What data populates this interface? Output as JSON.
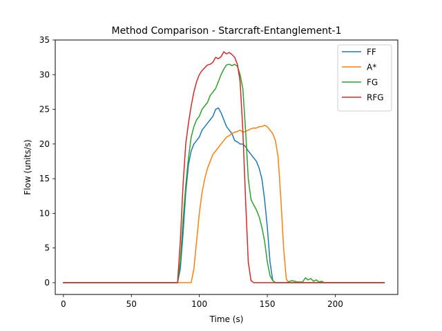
{
  "chart_data": {
    "type": "line",
    "title": "Method Comparison - Starcraft-Entanglement-1",
    "xlabel": "Time (s)",
    "ylabel": "Flow (units/s)",
    "xlim": [
      -6,
      246
    ],
    "ylim": [
      -1.7,
      35
    ],
    "xticks": [
      0,
      50,
      100,
      150,
      200
    ],
    "yticks": [
      0,
      5,
      10,
      15,
      20,
      25,
      30,
      35
    ],
    "grid": false,
    "legend_position": "top-right",
    "series": [
      {
        "name": "FF",
        "color": "#1f77b4",
        "points": [
          [
            0,
            0
          ],
          [
            84,
            0
          ],
          [
            86,
            2
          ],
          [
            88,
            7
          ],
          [
            90,
            13
          ],
          [
            92,
            17
          ],
          [
            94,
            19
          ],
          [
            96,
            20
          ],
          [
            98,
            20.5
          ],
          [
            100,
            21
          ],
          [
            102,
            22
          ],
          [
            104,
            22.5
          ],
          [
            106,
            23
          ],
          [
            108,
            23.5
          ],
          [
            110,
            24
          ],
          [
            112,
            25
          ],
          [
            114,
            25.2
          ],
          [
            116,
            24.5
          ],
          [
            118,
            23.5
          ],
          [
            120,
            22.5
          ],
          [
            122,
            22
          ],
          [
            124,
            21.5
          ],
          [
            126,
            20.5
          ],
          [
            128,
            20.3
          ],
          [
            130,
            20
          ],
          [
            132,
            20
          ],
          [
            134,
            19.6
          ],
          [
            136,
            19
          ],
          [
            138,
            18.5
          ],
          [
            140,
            18
          ],
          [
            142,
            17.5
          ],
          [
            144,
            16.5
          ],
          [
            146,
            15
          ],
          [
            148,
            12
          ],
          [
            150,
            8
          ],
          [
            152,
            3
          ],
          [
            154,
            0.3
          ],
          [
            156,
            0
          ],
          [
            236,
            0
          ]
        ]
      },
      {
        "name": "A*",
        "color": "#ff7f0e",
        "points": [
          [
            0,
            0
          ],
          [
            94,
            0
          ],
          [
            96,
            2
          ],
          [
            98,
            6
          ],
          [
            100,
            10
          ],
          [
            102,
            13
          ],
          [
            104,
            15
          ],
          [
            106,
            16.5
          ],
          [
            108,
            17.5
          ],
          [
            110,
            18.5
          ],
          [
            112,
            19
          ],
          [
            114,
            19.5
          ],
          [
            116,
            20
          ],
          [
            118,
            20.5
          ],
          [
            120,
            21
          ],
          [
            122,
            21.2
          ],
          [
            124,
            21.5
          ],
          [
            126,
            21.7
          ],
          [
            128,
            21.8
          ],
          [
            130,
            22
          ],
          [
            132,
            21.7
          ],
          [
            134,
            21.8
          ],
          [
            136,
            22
          ],
          [
            138,
            22.2
          ],
          [
            140,
            22.3
          ],
          [
            142,
            22.3
          ],
          [
            144,
            22.5
          ],
          [
            146,
            22.5
          ],
          [
            148,
            22.7
          ],
          [
            150,
            22.5
          ],
          [
            152,
            22
          ],
          [
            154,
            21.5
          ],
          [
            156,
            20.5
          ],
          [
            158,
            18
          ],
          [
            160,
            12
          ],
          [
            162,
            5
          ],
          [
            164,
            0.5
          ],
          [
            166,
            0
          ],
          [
            236,
            0
          ]
        ]
      },
      {
        "name": "FG",
        "color": "#2ca02c",
        "points": [
          [
            0,
            0
          ],
          [
            84,
            0
          ],
          [
            86,
            3
          ],
          [
            88,
            9
          ],
          [
            90,
            14
          ],
          [
            92,
            18
          ],
          [
            94,
            21
          ],
          [
            96,
            22.5
          ],
          [
            98,
            23.5
          ],
          [
            100,
            24
          ],
          [
            102,
            25
          ],
          [
            104,
            25.5
          ],
          [
            106,
            26
          ],
          [
            108,
            27
          ],
          [
            110,
            27.5
          ],
          [
            112,
            28
          ],
          [
            114,
            29
          ],
          [
            116,
            30
          ],
          [
            118,
            30.8
          ],
          [
            120,
            31.4
          ],
          [
            122,
            31.5
          ],
          [
            124,
            31.3
          ],
          [
            126,
            31.5
          ],
          [
            128,
            31.2
          ],
          [
            130,
            30
          ],
          [
            132,
            28
          ],
          [
            134,
            22
          ],
          [
            136,
            15
          ],
          [
            138,
            12
          ],
          [
            140,
            11.2
          ],
          [
            142,
            10.5
          ],
          [
            144,
            9.5
          ],
          [
            146,
            8
          ],
          [
            148,
            6
          ],
          [
            150,
            3
          ],
          [
            152,
            1
          ],
          [
            154,
            0.3
          ],
          [
            156,
            0
          ],
          [
            164,
            0
          ],
          [
            168,
            0.3
          ],
          [
            172,
            0.1
          ],
          [
            176,
            0.1
          ],
          [
            178,
            0.7
          ],
          [
            180,
            0.4
          ],
          [
            182,
            0.6
          ],
          [
            184,
            0.2
          ],
          [
            186,
            0.4
          ],
          [
            188,
            0.1
          ],
          [
            190,
            0.2
          ],
          [
            192,
            0
          ],
          [
            236,
            0
          ]
        ]
      },
      {
        "name": "RFG",
        "color": "#d62728",
        "points": [
          [
            0,
            0
          ],
          [
            84,
            0
          ],
          [
            86,
            6
          ],
          [
            88,
            14
          ],
          [
            90,
            20
          ],
          [
            92,
            23
          ],
          [
            94,
            25.5
          ],
          [
            96,
            27.5
          ],
          [
            98,
            29
          ],
          [
            100,
            30
          ],
          [
            102,
            30.6
          ],
          [
            104,
            31
          ],
          [
            106,
            31.4
          ],
          [
            108,
            31.5
          ],
          [
            110,
            31.8
          ],
          [
            112,
            32.5
          ],
          [
            114,
            32.3
          ],
          [
            116,
            32.6
          ],
          [
            118,
            33.3
          ],
          [
            120,
            33
          ],
          [
            122,
            33.2
          ],
          [
            124,
            32.9
          ],
          [
            126,
            32.5
          ],
          [
            128,
            31.5
          ],
          [
            130,
            29
          ],
          [
            132,
            22
          ],
          [
            134,
            12
          ],
          [
            136,
            3
          ],
          [
            138,
            0.3
          ],
          [
            140,
            0
          ],
          [
            236,
            0
          ]
        ]
      }
    ]
  }
}
